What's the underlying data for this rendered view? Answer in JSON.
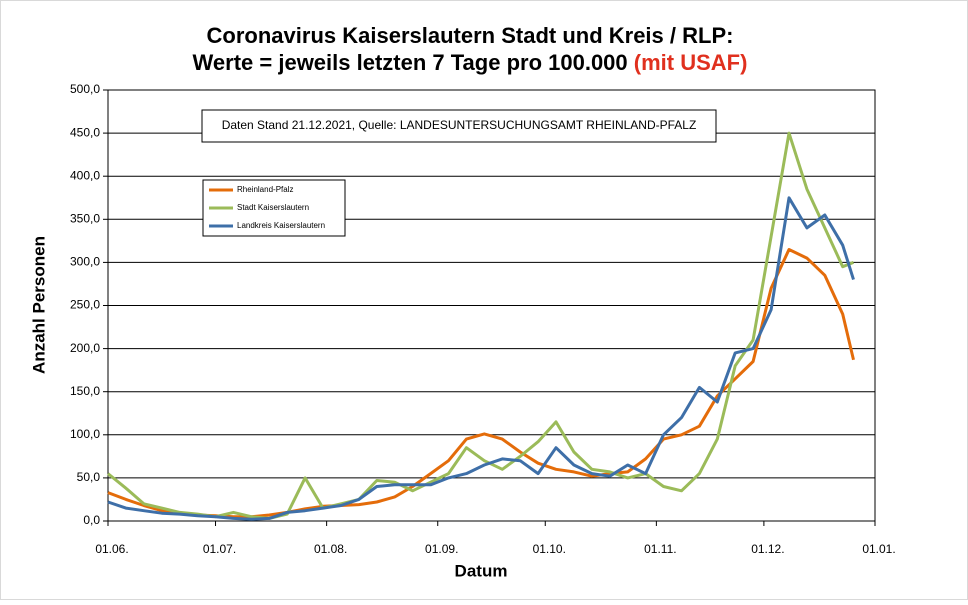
{
  "chart_data": {
    "type": "line",
    "title": "Coronavirus Kaiserslautern Stadt und Kreis / RLP:",
    "subtitle": "Werte = jeweils letzten 7 Tage pro 100.000",
    "subtitle_note": "(mit USAF)",
    "annotation": "Daten Stand 21.12.2021, Quelle: LANDESUNTERSUCHUNGSAMT RHEINLAND-PFALZ",
    "x_label": "Datum",
    "y_label": "Anzahl Personen",
    "x": [
      "01.06.",
      "06.06.",
      "11.06.",
      "16.06.",
      "21.06.",
      "26.06.",
      "01.07.",
      "06.07.",
      "11.07.",
      "16.07.",
      "21.07.",
      "26.07.",
      "31.07.",
      "05.08.",
      "10.08.",
      "15.08.",
      "20.08.",
      "25.08.",
      "30.08.",
      "04.09.",
      "09.09.",
      "14.09.",
      "19.09.",
      "24.09.",
      "29.09.",
      "04.10.",
      "09.10.",
      "14.10.",
      "19.10.",
      "24.10.",
      "29.10.",
      "03.11.",
      "08.11.",
      "13.11.",
      "18.11.",
      "23.11.",
      "28.11.",
      "03.12.",
      "08.12.",
      "13.12.",
      "18.12.",
      "23.12.",
      "26.12."
    ],
    "series": [
      {
        "name": "Rheinland-Pfalz",
        "color": "#e46c0a",
        "values": [
          33,
          25,
          18,
          12,
          9,
          7,
          6,
          5,
          5,
          7,
          10,
          14,
          17,
          18,
          19,
          22,
          28,
          40,
          55,
          70,
          95,
          101,
          95,
          80,
          67,
          60,
          57,
          52,
          55,
          57,
          72,
          95,
          100,
          110,
          145,
          165,
          185,
          270,
          315,
          305,
          285,
          240,
          187
        ]
      },
      {
        "name": "Stadt Kaiserslautern",
        "color": "#9bbb59",
        "values": [
          55,
          38,
          20,
          15,
          10,
          8,
          5,
          10,
          5,
          3,
          8,
          50,
          15,
          20,
          25,
          47,
          45,
          35,
          45,
          55,
          85,
          70,
          60,
          75,
          92,
          115,
          80,
          60,
          57,
          50,
          55,
          40,
          35,
          55,
          95,
          180,
          210,
          330,
          450,
          385,
          340,
          295,
          300
        ]
      },
      {
        "name": "Landkreis Kaiserslautern",
        "color": "#3e6fa8",
        "values": [
          22,
          15,
          12,
          9,
          8,
          6,
          5,
          3,
          2,
          3,
          10,
          12,
          15,
          18,
          25,
          40,
          42,
          42,
          42,
          50,
          55,
          65,
          72,
          70,
          55,
          85,
          65,
          55,
          52,
          65,
          55,
          100,
          120,
          155,
          138,
          195,
          200,
          245,
          375,
          340,
          355,
          320,
          280
        ]
      }
    ],
    "xlim": [
      "01.06.",
      "01.01."
    ],
    "xticks": [
      "01.06.",
      "01.07.",
      "01.08.",
      "01.09.",
      "01.10.",
      "01.11.",
      "01.12.",
      "01.01."
    ],
    "ylim": [
      0,
      500
    ],
    "yticks": [
      {
        "value": 0,
        "label": "0,0"
      },
      {
        "value": 50,
        "label": "50,0"
      },
      {
        "value": 100,
        "label": "100,0"
      },
      {
        "value": 150,
        "label": "150,0"
      },
      {
        "value": 200,
        "label": "200,0"
      },
      {
        "value": 250,
        "label": "250,0"
      },
      {
        "value": 300,
        "label": "300,0"
      },
      {
        "value": 350,
        "label": "350,0"
      },
      {
        "value": 400,
        "label": "400,0"
      },
      {
        "value": 450,
        "label": "450,0"
      },
      {
        "value": 500,
        "label": "500,0"
      }
    ],
    "grid": true,
    "legend": "upper-left"
  }
}
